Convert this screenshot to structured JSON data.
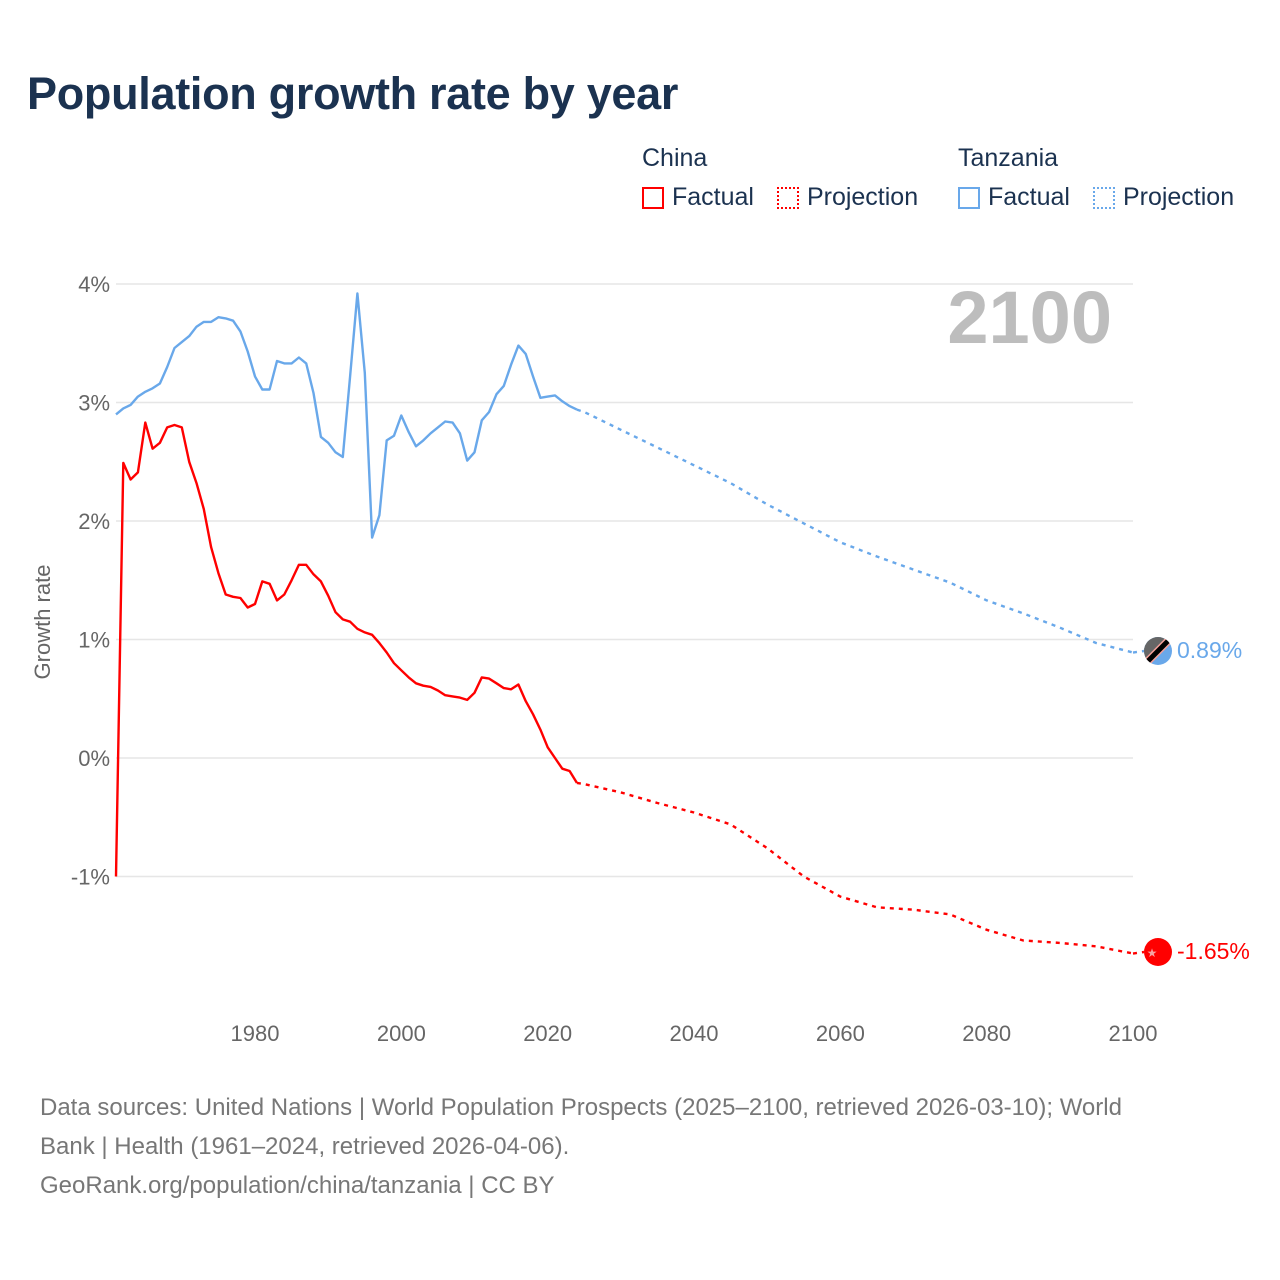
{
  "title": "Population growth rate by year",
  "legend": {
    "groups": [
      {
        "name": "China",
        "factual": "Factual",
        "projection": "Projection",
        "color": "#ff0000"
      },
      {
        "name": "Tanzania",
        "factual": "Factual",
        "projection": "Projection",
        "color": "#69a8ea"
      }
    ]
  },
  "year_label": "2100",
  "end_labels": {
    "tanzania": "0.89%",
    "china": "-1.65%"
  },
  "footer": {
    "line1": "Data sources: United Nations | World Population Prospects (2025–2100, retrieved 2026-03-10); World",
    "line2": "Bank | Health (1961–2024, retrieved 2026-04-06).",
    "line3": "GeoRank.org/population/china/tanzania | CC BY"
  },
  "chart_data": {
    "type": "line",
    "title": "Population growth rate by year",
    "xlabel": "",
    "ylabel": "Growth rate",
    "xlim": [
      1961,
      2100
    ],
    "ylim": [
      -1.9,
      4.2
    ],
    "x_ticks": [
      1980,
      2000,
      2020,
      2040,
      2060,
      2080,
      2100
    ],
    "x_tick_labels": [
      "1980",
      "2000",
      "2020",
      "2040",
      "2060",
      "2080",
      "2100"
    ],
    "y_ticks": [
      4,
      3,
      2,
      1,
      0,
      -1
    ],
    "y_tick_labels": [
      "4%",
      "3%",
      "2%",
      "1%",
      "0%",
      "-1%"
    ],
    "grid": true,
    "legend_position": "top-right",
    "series": [
      {
        "name": "China Factual",
        "color": "#ff0000",
        "style": "solid",
        "x_start": 1961,
        "values": [
          -1.0,
          2.49,
          2.35,
          2.41,
          2.83,
          2.61,
          2.66,
          2.79,
          2.81,
          2.79,
          2.5,
          2.32,
          2.1,
          1.78,
          1.56,
          1.38,
          1.36,
          1.35,
          1.27,
          1.3,
          1.49,
          1.47,
          1.33,
          1.38,
          1.5,
          1.63,
          1.63,
          1.55,
          1.49,
          1.37,
          1.23,
          1.17,
          1.15,
          1.09,
          1.06,
          1.04,
          0.97,
          0.89,
          0.8,
          0.74,
          0.68,
          0.63,
          0.61,
          0.6,
          0.57,
          0.53,
          0.52,
          0.51,
          0.49,
          0.55,
          0.68,
          0.67,
          0.63,
          0.59,
          0.58,
          0.62,
          0.48,
          0.37,
          0.24,
          0.09,
          0.0,
          -0.09,
          -0.11,
          -0.21
        ]
      },
      {
        "name": "China Projection",
        "color": "#ff0000",
        "style": "dotted",
        "x": [
          2024,
          2025,
          2030,
          2035,
          2040,
          2045,
          2050,
          2055,
          2060,
          2065,
          2070,
          2075,
          2080,
          2085,
          2090,
          2095,
          2100
        ],
        "values": [
          -0.21,
          -0.22,
          -0.29,
          -0.38,
          -0.46,
          -0.56,
          -0.76,
          -1.0,
          -1.17,
          -1.26,
          -1.28,
          -1.32,
          -1.45,
          -1.54,
          -1.56,
          -1.59,
          -1.65
        ]
      },
      {
        "name": "Tanzania Factual",
        "color": "#69a8ea",
        "style": "solid",
        "x_start": 1961,
        "values": [
          2.9,
          2.95,
          2.98,
          3.05,
          3.09,
          3.12,
          3.16,
          3.3,
          3.46,
          3.51,
          3.56,
          3.64,
          3.68,
          3.68,
          3.72,
          3.71,
          3.69,
          3.6,
          3.43,
          3.22,
          3.11,
          3.11,
          3.35,
          3.33,
          3.33,
          3.38,
          3.33,
          3.08,
          2.71,
          2.66,
          2.58,
          2.54,
          3.22,
          3.92,
          3.25,
          1.86,
          2.05,
          2.68,
          2.72,
          2.89,
          2.75,
          2.63,
          2.68,
          2.74,
          2.79,
          2.84,
          2.83,
          2.74,
          2.51,
          2.58,
          2.85,
          2.92,
          3.07,
          3.14,
          3.32,
          3.48,
          3.41,
          3.22,
          3.04,
          3.05,
          3.06,
          3.01,
          2.97,
          2.94
        ]
      },
      {
        "name": "Tanzania Projection",
        "color": "#69a8ea",
        "style": "dotted",
        "x": [
          2024,
          2025,
          2030,
          2035,
          2040,
          2045,
          2050,
          2055,
          2060,
          2065,
          2070,
          2075,
          2080,
          2085,
          2090,
          2095,
          2100
        ],
        "values": [
          2.94,
          2.92,
          2.77,
          2.62,
          2.47,
          2.32,
          2.14,
          1.98,
          1.82,
          1.7,
          1.59,
          1.48,
          1.33,
          1.22,
          1.1,
          0.97,
          0.89
        ]
      }
    ]
  }
}
